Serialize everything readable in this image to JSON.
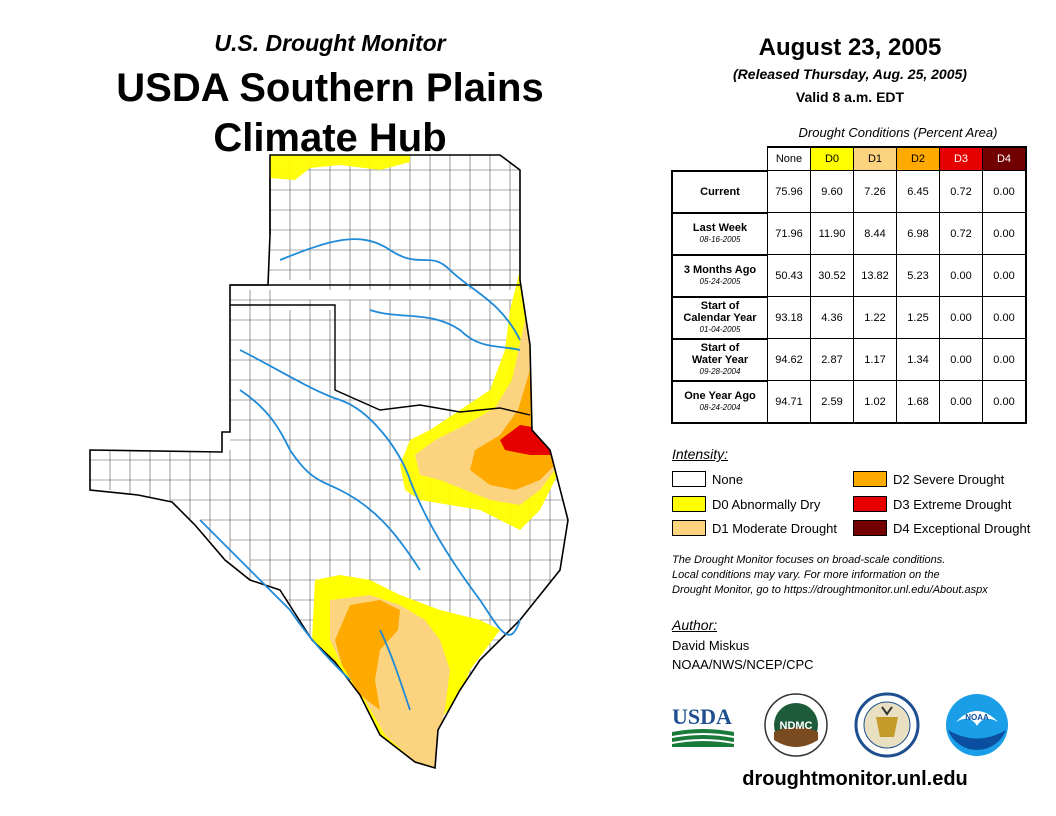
{
  "header": {
    "subtitle": "U.S. Drought Monitor",
    "title_line1": "USDA Southern Plains",
    "title_line2": "Climate Hub"
  },
  "map_info": {
    "date": "August 23, 2005",
    "released": "(Released Thursday, Aug. 25, 2005)",
    "valid": "Valid 8 a.m. EDT"
  },
  "table": {
    "caption": "Drought Conditions (Percent Area)",
    "columns": [
      "None",
      "D0",
      "D1",
      "D2",
      "D3",
      "D4"
    ],
    "rows": [
      {
        "label_line1": "Current",
        "label_line2": "",
        "date": "",
        "values": [
          "75.96",
          "9.60",
          "7.26",
          "6.45",
          "0.72",
          "0.00"
        ]
      },
      {
        "label_line1": "Last Week",
        "label_line2": "",
        "date": "08-16-2005",
        "values": [
          "71.96",
          "11.90",
          "8.44",
          "6.98",
          "0.72",
          "0.00"
        ]
      },
      {
        "label_line1": "3 Months Ago",
        "label_line2": "",
        "date": "05-24-2005",
        "values": [
          "50.43",
          "30.52",
          "13.82",
          "5.23",
          "0.00",
          "0.00"
        ]
      },
      {
        "label_line1": "Start of",
        "label_line2": "Calendar Year",
        "date": "01-04-2005",
        "values": [
          "93.18",
          "4.36",
          "1.22",
          "1.25",
          "0.00",
          "0.00"
        ]
      },
      {
        "label_line1": "Start of",
        "label_line2": "Water Year",
        "date": "09-28-2004",
        "values": [
          "94.62",
          "2.87",
          "1.17",
          "1.34",
          "0.00",
          "0.00"
        ]
      },
      {
        "label_line1": "One Year Ago",
        "label_line2": "",
        "date": "08-24-2004",
        "values": [
          "94.71",
          "2.59",
          "1.02",
          "1.68",
          "0.00",
          "0.00"
        ]
      }
    ]
  },
  "legend": {
    "title": "Intensity:",
    "items": [
      {
        "label": "None",
        "color": "#ffffff"
      },
      {
        "label": "D0 Abnormally Dry",
        "color": "#ffff00"
      },
      {
        "label": "D1 Moderate Drought",
        "color": "#fcd37f"
      },
      {
        "label": "D2 Severe Drought",
        "color": "#ffaa00"
      },
      {
        "label": "D3 Extreme Drought",
        "color": "#e60000"
      },
      {
        "label": "D4 Exceptional Drought",
        "color": "#730000"
      }
    ]
  },
  "note": {
    "line1": "The Drought Monitor focuses on broad-scale conditions.",
    "line2": "Local conditions may vary. For more information on the",
    "line3": "Drought Monitor, go to https://droughtmonitor.unl.edu/About.aspx"
  },
  "author": {
    "label": "Author:",
    "name": "David Miskus",
    "org": "NOAA/NWS/NCEP/CPC"
  },
  "logos": {
    "usda": "USDA",
    "ndmc": "NDMC",
    "noaa": "NOAA"
  },
  "website": "droughtmonitor.unl.edu",
  "colors": {
    "none": "#ffffff",
    "d0": "#ffff00",
    "d1": "#fcd37f",
    "d2": "#ffaa00",
    "d3": "#e60000",
    "d4": "#730000",
    "river": "#1f8ad8"
  }
}
